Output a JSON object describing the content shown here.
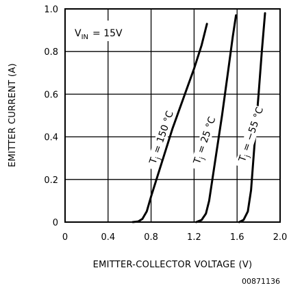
{
  "chart_data": {
    "type": "line",
    "title": "",
    "xlabel": "EMITTER-COLLECTOR VOLTAGE (V)",
    "ylabel": "EMITTER CURRENT (A)",
    "xlim": [
      0,
      2.0
    ],
    "ylim": [
      0,
      1.0
    ],
    "xticks": [
      "0",
      "0.4",
      "0.8",
      "1.2",
      "1.6",
      "2.0"
    ],
    "yticks": [
      "0",
      "0.2",
      "0.4",
      "0.6",
      "0.8",
      "1.0"
    ],
    "grid": true,
    "annotation": {
      "vin_symbol": "V",
      "vin_subscript": "IN",
      "vin_value": "= 15V"
    },
    "series": [
      {
        "label_main": "T",
        "label_sub": "j",
        "label_value": "= 150 °C",
        "points": [
          [
            0.63,
            0.0
          ],
          [
            0.68,
            0.003
          ],
          [
            0.72,
            0.015
          ],
          [
            0.76,
            0.05
          ],
          [
            0.8,
            0.12
          ],
          [
            0.9,
            0.28
          ],
          [
            1.0,
            0.44
          ],
          [
            1.1,
            0.58
          ],
          [
            1.2,
            0.72
          ],
          [
            1.27,
            0.83
          ],
          [
            1.32,
            0.93
          ]
        ]
      },
      {
        "label_main": "T",
        "label_sub": "j",
        "label_value": "= 25 °C",
        "points": [
          [
            1.22,
            0.0
          ],
          [
            1.27,
            0.01
          ],
          [
            1.31,
            0.04
          ],
          [
            1.34,
            0.1
          ],
          [
            1.4,
            0.3
          ],
          [
            1.46,
            0.5
          ],
          [
            1.52,
            0.72
          ],
          [
            1.56,
            0.87
          ],
          [
            1.59,
            0.97
          ]
        ]
      },
      {
        "label_main": "T",
        "label_sub": "j",
        "label_value": "= −55 °C",
        "points": [
          [
            1.62,
            0.0
          ],
          [
            1.66,
            0.01
          ],
          [
            1.7,
            0.05
          ],
          [
            1.73,
            0.15
          ],
          [
            1.76,
            0.35
          ],
          [
            1.8,
            0.6
          ],
          [
            1.83,
            0.8
          ],
          [
            1.86,
            0.98
          ]
        ]
      }
    ],
    "figure_id": "00871136"
  }
}
